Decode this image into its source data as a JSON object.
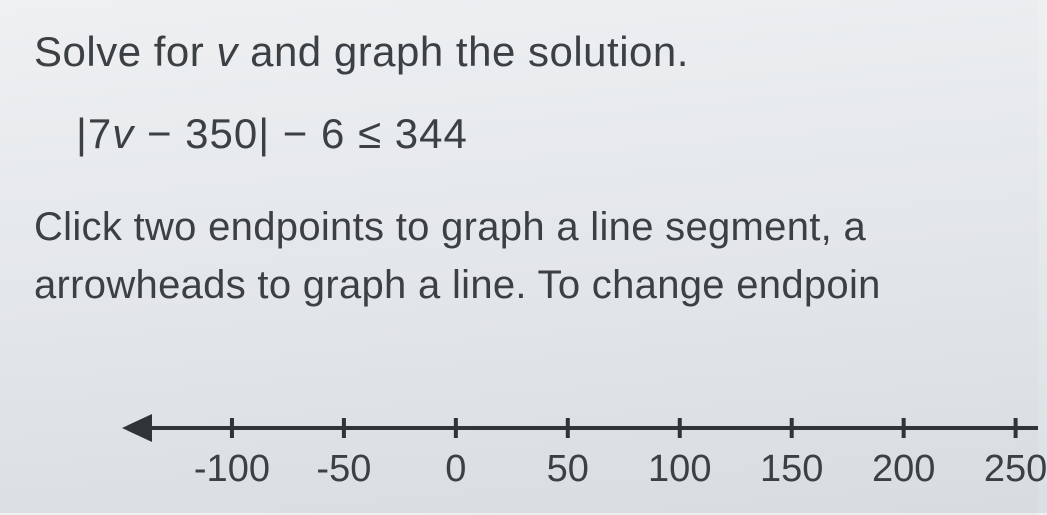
{
  "problem": {
    "prompt_prefix": "Solve for ",
    "variable": "v",
    "prompt_suffix": " and graph the solution.",
    "equation_html": "|7v − 350| − 6 ≤ 344",
    "instruction_line1": "Click two endpoints to graph a line segment, a",
    "instruction_line2": "arrowheads to graph a line. To change endpoin"
  },
  "numberline": {
    "type": "numberline",
    "xlim": [
      -150,
      260
    ],
    "tick_step": 50,
    "ticks": [
      -100,
      -50,
      0,
      50,
      100,
      150,
      200,
      250
    ],
    "axis_color": "#2f3438",
    "stroke_width": 4,
    "tick_height": 20,
    "arrow_left": true,
    "label_fontsize": 38
  },
  "colors": {
    "background_top": "#eef0f2",
    "background_bottom": "#d8dce0",
    "text": "#3b4045"
  }
}
